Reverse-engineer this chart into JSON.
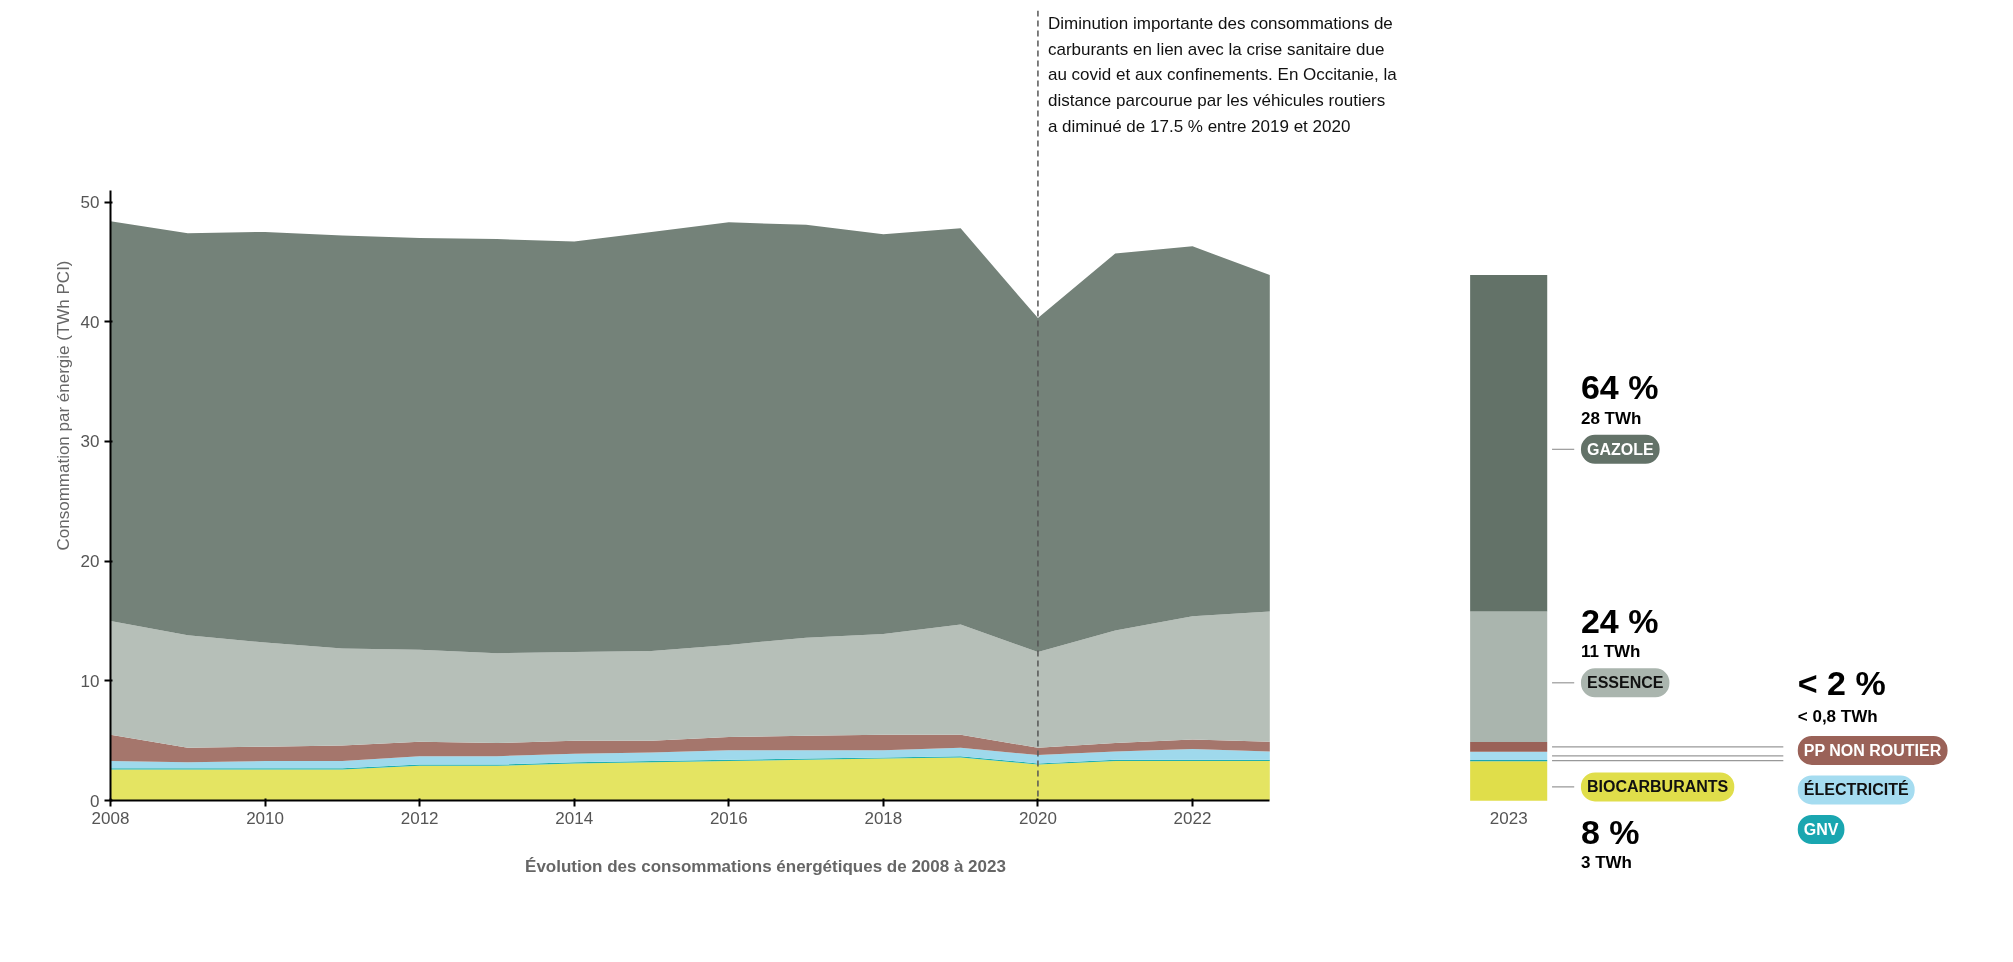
{
  "chart_data": [
    {
      "type": "area",
      "stacked": true,
      "ylabel": "Consommation par énergie (TWh PCI)",
      "xlabel": "Évolution des consommations énergétiques de 2008 à 2023",
      "x": [
        2008,
        2009,
        2010,
        2011,
        2012,
        2013,
        2014,
        2015,
        2016,
        2017,
        2018,
        2019,
        2020,
        2021,
        2022,
        2023
      ],
      "xlim": [
        2008,
        2023
      ],
      "xticks": [
        2008,
        2010,
        2012,
        2014,
        2016,
        2018,
        2020,
        2022
      ],
      "ylim": [
        0,
        51
      ],
      "yticks": [
        0,
        10,
        20,
        30,
        40,
        50
      ],
      "grid": false,
      "series": [
        {
          "color": "#e4e462",
          "values": [
            2.6,
            2.6,
            2.6,
            2.6,
            2.9,
            2.9,
            3.1,
            3.2,
            3.3,
            3.4,
            3.5,
            3.6,
            3.0,
            3.3,
            3.3,
            3.3
          ]
        },
        {
          "color": "#1fb0b0",
          "values": [
            0.1,
            0.1,
            0.1,
            0.1,
            0.1,
            0.1,
            0.1,
            0.1,
            0.1,
            0.1,
            0.1,
            0.1,
            0.1,
            0.1,
            0.1,
            0.1
          ]
        },
        {
          "color": "#9fd9ec",
          "values": [
            0.6,
            0.5,
            0.6,
            0.6,
            0.7,
            0.7,
            0.7,
            0.7,
            0.8,
            0.7,
            0.6,
            0.7,
            0.7,
            0.7,
            0.9,
            0.7
          ]
        },
        {
          "color": "#a5766c",
          "values": [
            2.2,
            1.2,
            1.2,
            1.3,
            1.2,
            1.1,
            1.1,
            1.0,
            1.1,
            1.2,
            1.3,
            1.1,
            0.6,
            0.7,
            0.8,
            0.8
          ]
        },
        {
          "color": "#b6bfb8",
          "values": [
            9.5,
            9.4,
            8.7,
            8.1,
            7.7,
            7.5,
            7.4,
            7.5,
            7.7,
            8.2,
            8.4,
            9.2,
            8.0,
            9.4,
            10.3,
            10.9
          ]
        },
        {
          "color": "#748279",
          "values": [
            33.4,
            33.6,
            34.3,
            34.5,
            34.4,
            34.6,
            34.3,
            35.0,
            35.3,
            34.5,
            33.4,
            33.1,
            27.9,
            31.5,
            30.9,
            28.1
          ]
        }
      ],
      "ref_lines": [
        {
          "axis": "x",
          "value": 2020,
          "line_style": "dashed",
          "color": "#555555",
          "label": "Diminution importante des consommations de carburants en lien avec la crise sanitaire due au covid et aux confinements. En Occitanie, la distance parcourue par les véhicules routiers a diminué de 17.5 % entre 2019 et 2020"
        }
      ]
    },
    {
      "type": "bar",
      "stacked": true,
      "categories": [
        "2023"
      ],
      "tick_labels": "x",
      "legend": "right",
      "series": [
        {
          "name": "BIOCARBURANTS",
          "color": "#e0de4a",
          "values": [
            3.3
          ],
          "value_labels": [
            "8 %\n3 TWh"
          ]
        },
        {
          "name": "GNV",
          "color": "#1aa6b0",
          "values": [
            0.1
          ],
          "value_labels": [
            null
          ]
        },
        {
          "name": "ÉLECTRICITÉ",
          "color": "#a5dcf0",
          "values": [
            0.7
          ],
          "value_labels": [
            null
          ]
        },
        {
          "name": "PP NON ROUTIER",
          "color": "#9a6258",
          "values": [
            0.8
          ],
          "value_labels": [
            "< 2 %\n< 0,8 TWh"
          ]
        },
        {
          "name": "ESSENCE",
          "color": "#aab5ae",
          "values": [
            10.9
          ],
          "value_labels": [
            "24 %\n11 TWh"
          ]
        },
        {
          "name": "GAZOLE",
          "color": "#637268",
          "values": [
            28.1
          ],
          "value_labels": [
            "64 %\n28 TWh"
          ]
        }
      ]
    }
  ]
}
